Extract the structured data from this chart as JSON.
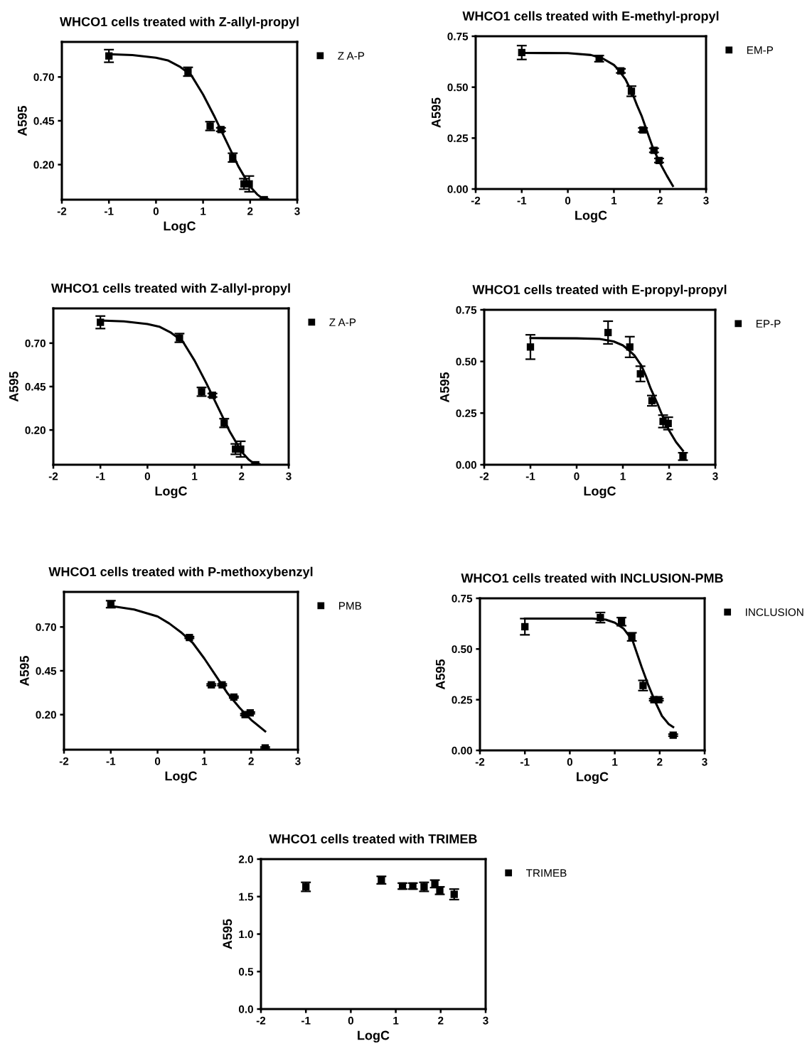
{
  "chart_data": [
    {
      "type": "scatter",
      "title": "WHCO1 cells treated with Z-allyl-propyl",
      "xlabel": "LogC",
      "ylabel": "A595",
      "xlim": [
        -2,
        3
      ],
      "ylim": [
        0,
        0.9
      ],
      "xticks": [
        -2,
        -1,
        0,
        1,
        2,
        3
      ],
      "yticks": [
        {
          "value": 0.2,
          "label": "0.20"
        },
        {
          "value": 0.45,
          "label": "0.45"
        },
        {
          "value": 0.7,
          "label": "0.70"
        }
      ],
      "legend": "right",
      "series": [
        {
          "name": "Z A-P",
          "color": "#000000",
          "marker": "square",
          "x": [
            -1,
            0.68,
            1.15,
            1.38,
            1.63,
            1.87,
            1.98,
            2.3
          ],
          "values": [
            0.82,
            0.73,
            0.42,
            0.4,
            0.24,
            0.09,
            0.09,
            0.0
          ],
          "errors": [
            0.036,
            0.025,
            0.025,
            0.01,
            0.025,
            0.03,
            0.045,
            0.005
          ]
        },
        {
          "type": "line",
          "color": "#000000",
          "marker": "none",
          "x": [
            -1,
            -0.5,
            0,
            0.25,
            0.5,
            0.75,
            1.0,
            1.25,
            1.5,
            1.75,
            2.0,
            2.15,
            2.3
          ],
          "values": [
            0.83,
            0.825,
            0.81,
            0.795,
            0.76,
            0.71,
            0.6,
            0.47,
            0.33,
            0.19,
            0.075,
            0.03,
            0.0
          ]
        }
      ]
    },
    {
      "type": "scatter",
      "title": "WHCO1 cells treated with E-methyl-propyl",
      "xlabel": "LogC",
      "ylabel": "A595",
      "xlim": [
        -2,
        3
      ],
      "ylim": [
        0,
        0.75
      ],
      "xticks": [
        -2,
        -1,
        0,
        1,
        2,
        3
      ],
      "yticks": [
        {
          "value": 0,
          "label": "0.00"
        },
        {
          "value": 0.25,
          "label": "0.25"
        },
        {
          "value": 0.5,
          "label": "0.50"
        },
        {
          "value": 0.75,
          "label": "0.75"
        }
      ],
      "legend": "right",
      "series": [
        {
          "name": "EM-P",
          "color": "#000000",
          "marker": "square",
          "x": [
            -1,
            0.68,
            1.15,
            1.38,
            1.63,
            1.87,
            1.98
          ],
          "values": [
            0.67,
            0.64,
            0.58,
            0.48,
            0.29,
            0.19,
            0.14
          ],
          "errors": [
            0.034,
            0.015,
            0.01,
            0.025,
            0.01,
            0.01,
            0.01
          ]
        },
        {
          "type": "line",
          "color": "#000000",
          "marker": "none",
          "x": [
            -1,
            0,
            0.5,
            0.75,
            1.0,
            1.1,
            1.25,
            1.4,
            1.5,
            1.6,
            1.75,
            1.85,
            2.0,
            2.15,
            2.28
          ],
          "values": [
            0.668,
            0.667,
            0.658,
            0.642,
            0.609,
            0.585,
            0.539,
            0.47,
            0.412,
            0.36,
            0.263,
            0.2,
            0.127,
            0.065,
            0.015
          ]
        }
      ]
    },
    {
      "type": "scatter",
      "title": "WHCO1 cells treated with Z-allyl-propyl",
      "xlabel": "LogC",
      "ylabel": "A595",
      "xlim": [
        -2,
        3
      ],
      "ylim": [
        0,
        0.9
      ],
      "xticks": [
        -2,
        -1,
        0,
        1,
        2,
        3
      ],
      "yticks": [
        {
          "value": 0.2,
          "label": "0.20"
        },
        {
          "value": 0.45,
          "label": "0.45"
        },
        {
          "value": 0.7,
          "label": "0.70"
        }
      ],
      "legend": "right",
      "series": [
        {
          "name": "Z A-P",
          "color": "#000000",
          "marker": "square",
          "x": [
            -1,
            0.68,
            1.15,
            1.38,
            1.63,
            1.87,
            1.98,
            2.3
          ],
          "values": [
            0.82,
            0.73,
            0.42,
            0.4,
            0.24,
            0.09,
            0.09,
            0.0
          ],
          "errors": [
            0.036,
            0.025,
            0.025,
            0.01,
            0.025,
            0.03,
            0.045,
            0.005
          ]
        },
        {
          "type": "line",
          "color": "#000000",
          "marker": "none",
          "x": [
            -1,
            -0.5,
            0,
            0.25,
            0.5,
            0.75,
            1.0,
            1.25,
            1.5,
            1.75,
            2.0,
            2.15,
            2.3
          ],
          "values": [
            0.83,
            0.825,
            0.81,
            0.795,
            0.76,
            0.71,
            0.6,
            0.47,
            0.33,
            0.19,
            0.075,
            0.03,
            0.0
          ]
        }
      ]
    },
    {
      "type": "scatter",
      "title": "WHCO1 cells treated with E-propyl-propyl",
      "xlabel": "LogC",
      "ylabel": "A595",
      "xlim": [
        -2,
        3
      ],
      "ylim": [
        0,
        0.75
      ],
      "xticks": [
        -2,
        -1,
        0,
        1,
        2,
        3
      ],
      "yticks": [
        {
          "value": 0,
          "label": "0.00"
        },
        {
          "value": 0.25,
          "label": "0.25"
        },
        {
          "value": 0.5,
          "label": "0.50"
        },
        {
          "value": 0.75,
          "label": "0.75"
        }
      ],
      "legend": "right",
      "series": [
        {
          "name": "EP-P",
          "color": "#000000",
          "marker": "square",
          "x": [
            -1,
            0.68,
            1.15,
            1.38,
            1.63,
            1.87,
            1.98,
            2.3
          ],
          "values": [
            0.57,
            0.64,
            0.57,
            0.44,
            0.31,
            0.21,
            0.2,
            0.04
          ],
          "errors": [
            0.059,
            0.055,
            0.05,
            0.037,
            0.025,
            0.03,
            0.03,
            0.018
          ]
        },
        {
          "type": "line",
          "color": "#000000",
          "marker": "none",
          "x": [
            -1,
            0,
            0.5,
            0.8,
            1.0,
            1.1,
            1.25,
            1.4,
            1.5,
            1.6,
            1.75,
            1.85,
            2.0,
            2.15,
            2.3
          ],
          "values": [
            0.613,
            0.612,
            0.609,
            0.597,
            0.578,
            0.56,
            0.529,
            0.48,
            0.43,
            0.37,
            0.295,
            0.24,
            0.166,
            0.11,
            0.068
          ]
        }
      ]
    },
    {
      "type": "scatter",
      "title": "WHCO1 cells treated with P-methoxybenzyl",
      "xlabel": "LogC",
      "ylabel": "A595",
      "xlim": [
        -2,
        3
      ],
      "ylim": [
        0,
        0.9
      ],
      "xticks": [
        -2,
        -1,
        0,
        1,
        2,
        3
      ],
      "yticks": [
        {
          "value": 0.2,
          "label": "0.20"
        },
        {
          "value": 0.45,
          "label": "0.45"
        },
        {
          "value": 0.7,
          "label": "0.70"
        }
      ],
      "legend": "right",
      "series": [
        {
          "name": "PMB",
          "color": "#000000",
          "marker": "square",
          "x": [
            -1,
            0.68,
            1.15,
            1.38,
            1.63,
            1.87,
            1.98,
            2.3
          ],
          "values": [
            0.83,
            0.64,
            0.37,
            0.37,
            0.3,
            0.2,
            0.21,
            0.01
          ],
          "errors": [
            0.02,
            0.005,
            0.005,
            0.005,
            0.005,
            0.005,
            0.005,
            0.005
          ]
        },
        {
          "type": "line",
          "color": "#000000",
          "marker": "none",
          "x": [
            -1,
            -0.5,
            0,
            0.25,
            0.5,
            0.75,
            1.0,
            1.25,
            1.5,
            1.75,
            2.0,
            2.3
          ],
          "values": [
            0.82,
            0.8,
            0.76,
            0.72,
            0.67,
            0.61,
            0.52,
            0.42,
            0.32,
            0.24,
            0.17,
            0.105
          ]
        }
      ]
    },
    {
      "type": "scatter",
      "title": "WHCO1 cells treated with INCLUSION-PMB",
      "xlabel": "LogC",
      "ylabel": "A595",
      "xlim": [
        -2,
        3
      ],
      "ylim": [
        0,
        0.75
      ],
      "xticks": [
        -2,
        -1,
        0,
        1,
        2,
        3
      ],
      "yticks": [
        {
          "value": 0,
          "label": "0.00"
        },
        {
          "value": 0.25,
          "label": "0.25"
        },
        {
          "value": 0.5,
          "label": "0.50"
        },
        {
          "value": 0.75,
          "label": "0.75"
        }
      ],
      "legend": "right",
      "series": [
        {
          "name": "INCLUSION",
          "color": "#000000",
          "marker": "square",
          "x": [
            -1,
            0.68,
            1.15,
            1.38,
            1.63,
            1.87,
            1.98,
            2.3
          ],
          "values": [
            0.61,
            0.655,
            0.635,
            0.56,
            0.32,
            0.25,
            0.25,
            0.075
          ],
          "errors": [
            0.04,
            0.025,
            0.02,
            0.02,
            0.025,
            0.005,
            0.005,
            0.005
          ]
        },
        {
          "type": "line",
          "color": "#000000",
          "marker": "none",
          "x": [
            -1,
            0.5,
            0.8,
            1.0,
            1.2,
            1.4,
            1.6,
            1.75,
            1.9,
            2.05,
            2.2,
            2.3
          ],
          "values": [
            0.65,
            0.65,
            0.645,
            0.63,
            0.6,
            0.54,
            0.41,
            0.32,
            0.24,
            0.17,
            0.13,
            0.115
          ]
        }
      ]
    },
    {
      "type": "scatter",
      "title": "WHCO1 cells treated with TRIMEB",
      "xlabel": "LogC",
      "ylabel": "A595",
      "xlim": [
        -2,
        3
      ],
      "ylim": [
        0,
        2
      ],
      "xticks": [
        -2,
        -1,
        0,
        1,
        2,
        3
      ],
      "yticks": [
        {
          "value": 0,
          "label": "0.0"
        },
        {
          "value": 0.5,
          "label": "0.5"
        },
        {
          "value": 1,
          "label": "1.0"
        },
        {
          "value": 1.5,
          "label": "1.5"
        },
        {
          "value": 2,
          "label": "2.0"
        }
      ],
      "legend": "right",
      "series": [
        {
          "name": "TRIMEB",
          "color": "#000000",
          "marker": "square",
          "x": [
            -1,
            0.68,
            1.15,
            1.38,
            1.63,
            1.87,
            1.98,
            2.3
          ],
          "values": [
            1.63,
            1.72,
            1.64,
            1.64,
            1.63,
            1.67,
            1.58,
            1.53
          ],
          "errors": [
            0.06,
            0.05,
            0.04,
            0.04,
            0.06,
            0.05,
            0.05,
            0.07
          ]
        }
      ]
    }
  ]
}
